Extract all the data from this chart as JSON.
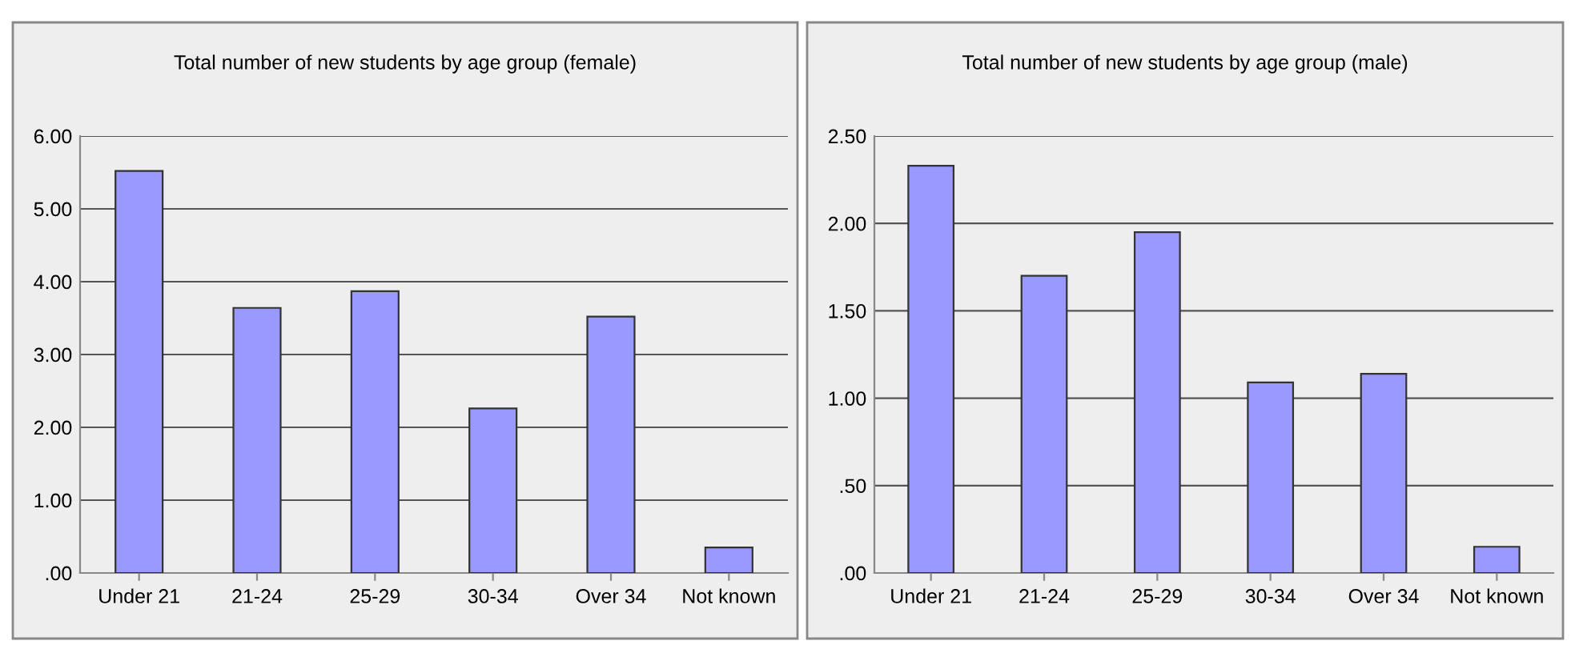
{
  "chart_data": [
    {
      "type": "bar",
      "title": "Total number of new students by age group (female)",
      "categories": [
        "Under 21",
        "21-24",
        "25-29",
        "30-34",
        "Over 34",
        "Not known"
      ],
      "values": [
        5.52,
        3.64,
        3.87,
        2.26,
        3.52,
        0.35
      ],
      "color": "#9999ff",
      "ylim": [
        0,
        6
      ],
      "yticks": [
        {
          "value": 0,
          "label": ".00"
        },
        {
          "value": 1,
          "label": "1.00"
        },
        {
          "value": 2,
          "label": "2.00"
        },
        {
          "value": 3,
          "label": "3.00"
        },
        {
          "value": 4,
          "label": "4.00"
        },
        {
          "value": 5,
          "label": "5.00"
        },
        {
          "value": 6,
          "label": "6.00"
        }
      ],
      "grid": "y",
      "legend": false
    },
    {
      "type": "bar",
      "title": "Total number of new students by age group (male)",
      "categories": [
        "Under 21",
        "21-24",
        "25-29",
        "30-34",
        "Over 34",
        "Not known"
      ],
      "values": [
        2.33,
        1.7,
        1.95,
        1.09,
        1.14,
        0.15
      ],
      "color": "#9999ff",
      "ylim": [
        0,
        2.5
      ],
      "yticks": [
        {
          "value": 0,
          "label": ".00"
        },
        {
          "value": 0.5,
          "label": ".50"
        },
        {
          "value": 1,
          "label": "1.00"
        },
        {
          "value": 1.5,
          "label": "1.50"
        },
        {
          "value": 2,
          "label": "2.00"
        },
        {
          "value": 2.5,
          "label": "2.50"
        }
      ],
      "grid": "y",
      "legend": false
    }
  ]
}
